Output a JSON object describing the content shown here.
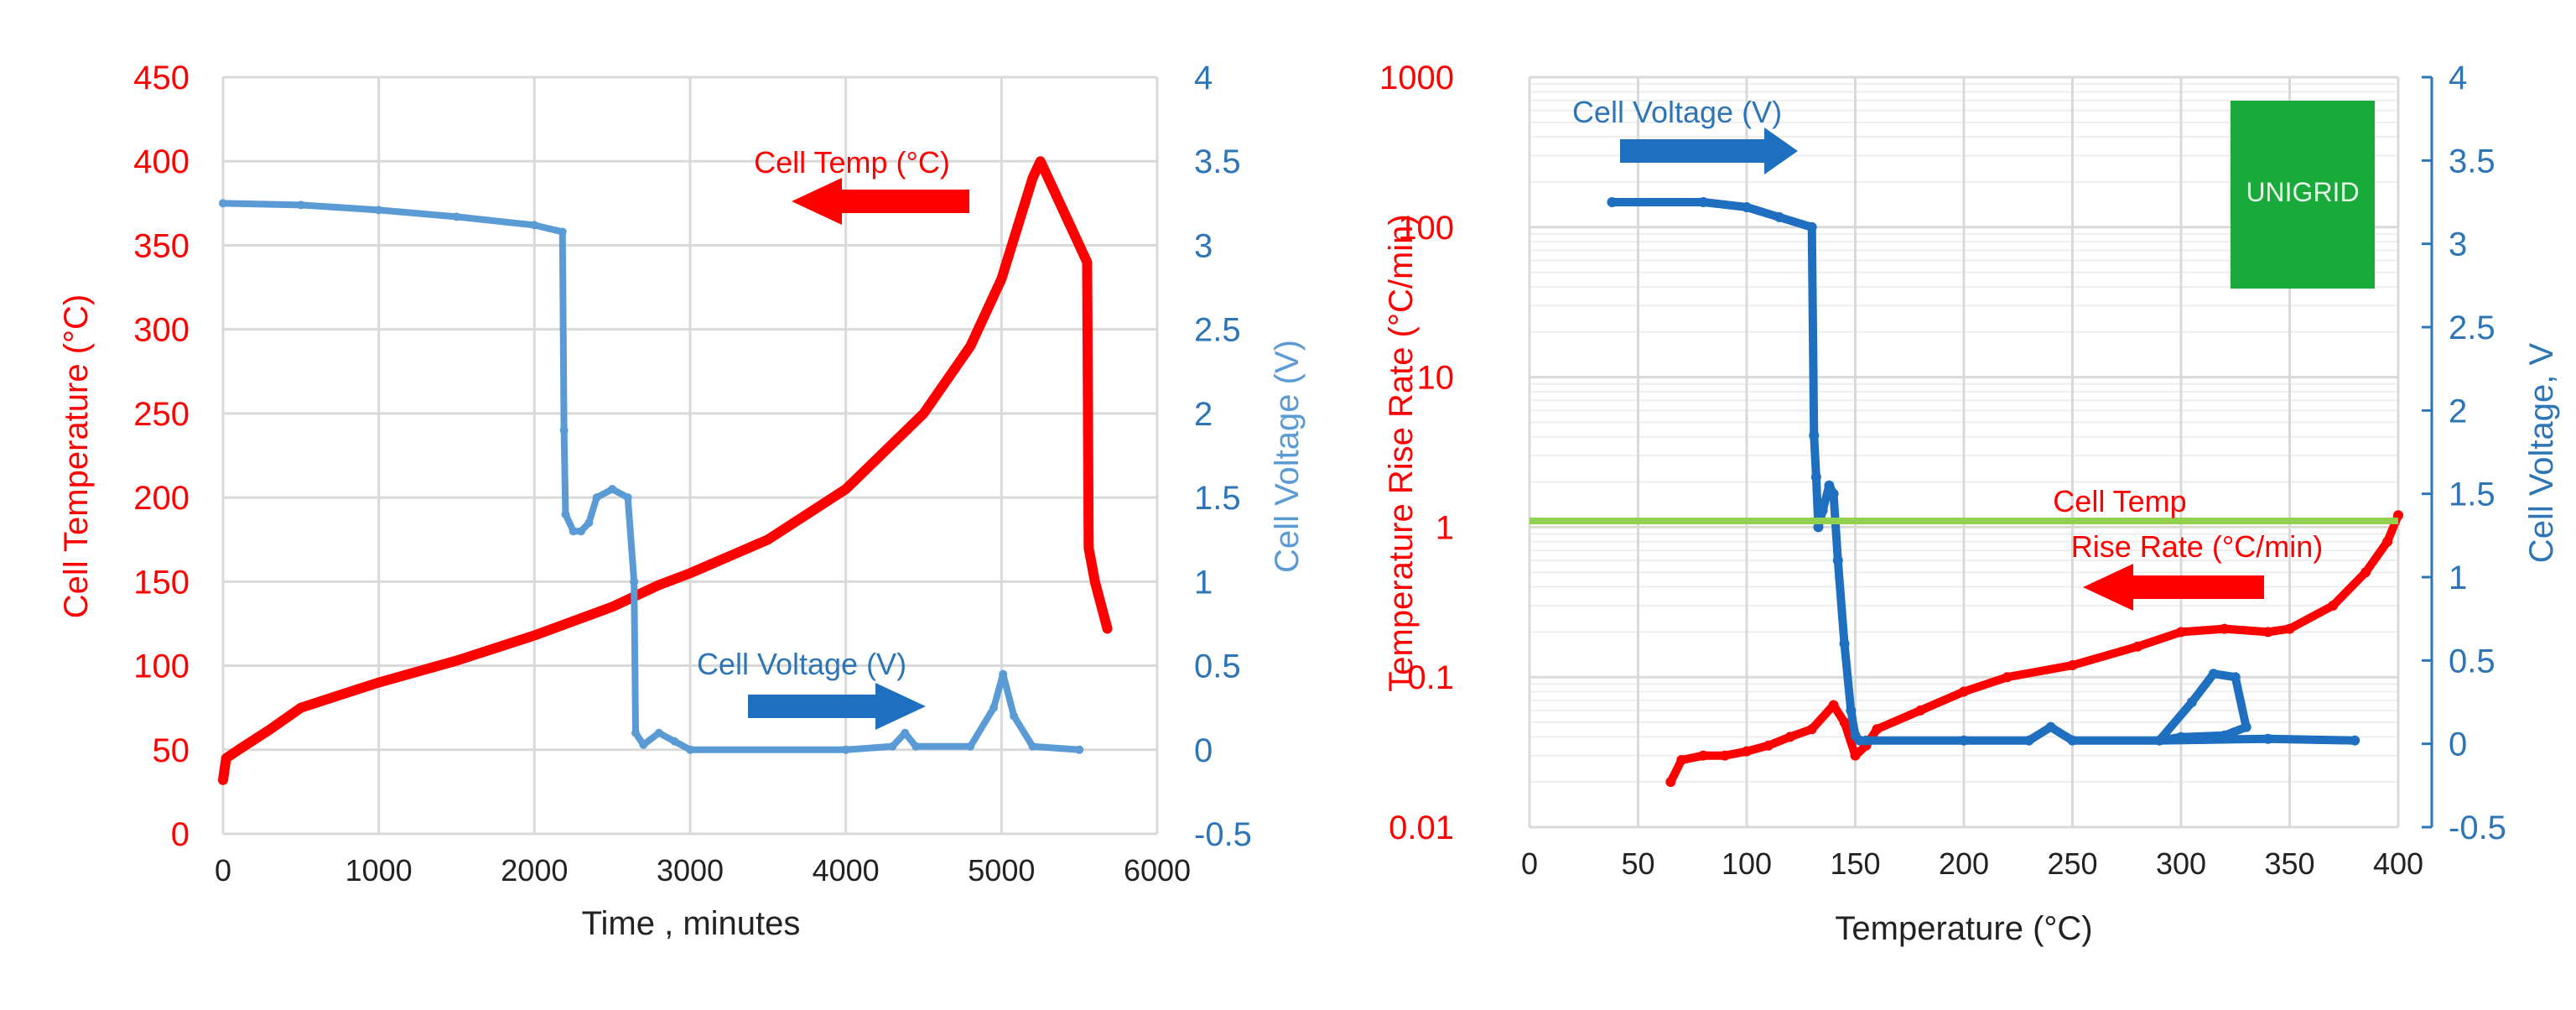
{
  "colors": {
    "temp": "#ff0000",
    "voltage_left": "#5b9bd5",
    "voltage_right": "#1f6fc0",
    "axis_right": "#2e75b6",
    "threshold": "#92d050",
    "logo_bg": "#1aaa3c"
  },
  "chart_data": [
    {
      "type": "line",
      "xlabel": "Time , minutes",
      "ylabel": "Cell Temperature (°C)",
      "y2label": "Cell Voltage (V)",
      "xlim": [
        0,
        6000
      ],
      "ylim": [
        0,
        450
      ],
      "y2lim": [
        -0.5,
        4
      ],
      "xticks": [
        "0",
        "1000",
        "2000",
        "3000",
        "4000",
        "5000",
        "6000"
      ],
      "yticks": [
        "0",
        "50",
        "100",
        "150",
        "200",
        "250",
        "300",
        "350",
        "400",
        "450"
      ],
      "y2ticks": [
        "-0.5",
        "0",
        "0.5",
        "1",
        "1.5",
        "2",
        "2.5",
        "3",
        "3.5",
        "4"
      ],
      "grid": true,
      "annotations": {
        "temp": "Cell Temp (°C)",
        "voltage": "Cell Voltage (V)"
      },
      "series": [
        {
          "name": "Cell Temp (°C)",
          "axis": "left",
          "x": [
            0,
            20,
            100,
            300,
            500,
            1000,
            1500,
            2000,
            2500,
            2800,
            3000,
            3500,
            4000,
            4500,
            4800,
            5000,
            5200,
            5250,
            5550,
            5560,
            5600,
            5680
          ],
          "y": [
            32,
            45,
            50,
            62,
            75,
            90,
            103,
            118,
            135,
            148,
            155,
            175,
            205,
            250,
            290,
            330,
            390,
            400,
            340,
            170,
            150,
            122
          ]
        },
        {
          "name": "Cell Voltage (V)",
          "axis": "right",
          "x": [
            0,
            500,
            1000,
            1500,
            2000,
            2180,
            2190,
            2200,
            2250,
            2300,
            2350,
            2400,
            2500,
            2600,
            2640,
            2650,
            2700,
            2800,
            2900,
            3000,
            4000,
            4300,
            4380,
            4450,
            4800,
            4950,
            5010,
            5080,
            5200,
            5500
          ],
          "y": [
            3.25,
            3.24,
            3.21,
            3.17,
            3.12,
            3.08,
            1.9,
            1.4,
            1.3,
            1.3,
            1.35,
            1.5,
            1.55,
            1.5,
            1.0,
            0.1,
            0.03,
            0.1,
            0.05,
            0.0,
            0.0,
            0.02,
            0.1,
            0.02,
            0.02,
            0.25,
            0.45,
            0.2,
            0.02,
            0.0
          ]
        }
      ]
    },
    {
      "type": "scatter",
      "xlabel": "Temperature (°C)",
      "ylabel": "Temperature Rise Rate (°C/min)",
      "y2label": "Cell Voltage, V",
      "xlim": [
        0,
        400
      ],
      "ylim": [
        0.01,
        1000
      ],
      "yscale": "log",
      "y2lim": [
        -0.5,
        4
      ],
      "xticks": [
        "0",
        "50",
        "100",
        "150",
        "200",
        "250",
        "300",
        "350",
        "400"
      ],
      "yticks": [
        "0.01",
        "0.1",
        "1",
        "10",
        "100",
        "1000"
      ],
      "y2ticks": [
        "-0.5",
        "0",
        "0.5",
        "1",
        "1.5",
        "2",
        "2.5",
        "3",
        "3.5",
        "4"
      ],
      "grid": true,
      "threshold": 1.1,
      "logo": "UNIGRID",
      "annotations": {
        "voltage": "Cell Voltage (V)",
        "temp_line1": "Cell Temp",
        "temp_line2": "Rise Rate (°C/min)"
      },
      "series": [
        {
          "name": "Cell Temp Rise Rate (°C/min)",
          "axis": "left",
          "x": [
            65,
            70,
            80,
            90,
            100,
            110,
            120,
            130,
            140,
            145,
            150,
            155,
            160,
            180,
            200,
            220,
            250,
            280,
            300,
            320,
            340,
            350,
            370,
            385,
            395,
            400
          ],
          "y": [
            0.02,
            0.028,
            0.03,
            0.03,
            0.032,
            0.035,
            0.04,
            0.045,
            0.065,
            0.05,
            0.03,
            0.035,
            0.045,
            0.06,
            0.08,
            0.1,
            0.12,
            0.16,
            0.2,
            0.21,
            0.2,
            0.21,
            0.3,
            0.5,
            0.8,
            1.2
          ]
        },
        {
          "name": "Cell Voltage (V)",
          "axis": "right",
          "x": [
            38,
            80,
            100,
            115,
            130,
            131,
            132,
            133,
            135,
            138,
            140,
            142,
            145,
            148,
            150,
            152,
            155,
            200,
            230,
            240,
            250,
            290,
            305,
            315,
            325,
            330,
            320,
            300,
            290,
            340,
            380
          ],
          "y": [
            3.25,
            3.25,
            3.22,
            3.16,
            3.1,
            1.85,
            1.6,
            1.3,
            1.4,
            1.55,
            1.5,
            1.1,
            0.6,
            0.2,
            0.05,
            0.02,
            0.02,
            0.02,
            0.02,
            0.1,
            0.02,
            0.02,
            0.25,
            0.42,
            0.4,
            0.1,
            0.05,
            0.04,
            0.02,
            0.03,
            0.02
          ]
        }
      ]
    }
  ]
}
